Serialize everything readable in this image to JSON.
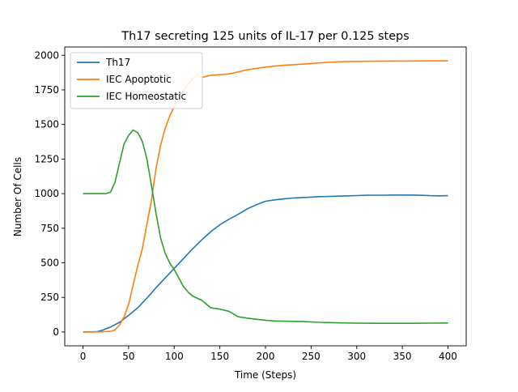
{
  "chart_data": {
    "type": "line",
    "title": "Th17 secreting 125 units of IL-17 per 0.125 steps",
    "xlabel": "Time (Steps)",
    "ylabel": "Number Of Cells",
    "xlim": [
      -20,
      420
    ],
    "ylim": [
      -100,
      2060
    ],
    "xticks": [
      0,
      50,
      100,
      150,
      200,
      250,
      300,
      350,
      400
    ],
    "yticks": [
      0,
      250,
      500,
      750,
      1000,
      1250,
      1500,
      1750,
      2000
    ],
    "grid": false,
    "legend_position": "top-left",
    "series": [
      {
        "name": "Th17",
        "color": "#1f77b4",
        "points": [
          [
            0,
            0
          ],
          [
            15,
            2
          ],
          [
            20,
            10
          ],
          [
            30,
            35
          ],
          [
            40,
            70
          ],
          [
            50,
            120
          ],
          [
            60,
            175
          ],
          [
            70,
            245
          ],
          [
            80,
            320
          ],
          [
            90,
            390
          ],
          [
            100,
            460
          ],
          [
            110,
            530
          ],
          [
            120,
            600
          ],
          [
            130,
            665
          ],
          [
            140,
            725
          ],
          [
            150,
            775
          ],
          [
            160,
            815
          ],
          [
            170,
            850
          ],
          [
            180,
            890
          ],
          [
            190,
            920
          ],
          [
            200,
            945
          ],
          [
            210,
            955
          ],
          [
            220,
            962
          ],
          [
            230,
            968
          ],
          [
            240,
            972
          ],
          [
            250,
            975
          ],
          [
            260,
            978
          ],
          [
            270,
            980
          ],
          [
            280,
            982
          ],
          [
            290,
            984
          ],
          [
            300,
            986
          ],
          [
            310,
            988
          ],
          [
            320,
            989
          ],
          [
            330,
            989
          ],
          [
            340,
            990
          ],
          [
            350,
            990
          ],
          [
            360,
            990
          ],
          [
            370,
            988
          ],
          [
            380,
            985
          ],
          [
            390,
            984
          ],
          [
            400,
            985
          ]
        ]
      },
      {
        "name": "IEC Apoptotic",
        "color": "#ff7f0e",
        "points": [
          [
            0,
            0
          ],
          [
            10,
            0
          ],
          [
            20,
            1
          ],
          [
            30,
            5
          ],
          [
            35,
            15
          ],
          [
            40,
            50
          ],
          [
            45,
            110
          ],
          [
            50,
            200
          ],
          [
            55,
            340
          ],
          [
            60,
            480
          ],
          [
            65,
            600
          ],
          [
            70,
            780
          ],
          [
            75,
            950
          ],
          [
            80,
            1180
          ],
          [
            85,
            1350
          ],
          [
            90,
            1470
          ],
          [
            95,
            1560
          ],
          [
            100,
            1630
          ],
          [
            105,
            1690
          ],
          [
            110,
            1740
          ],
          [
            115,
            1790
          ],
          [
            120,
            1830
          ],
          [
            125,
            1860
          ],
          [
            130,
            1840
          ],
          [
            140,
            1855
          ],
          [
            150,
            1860
          ],
          [
            160,
            1865
          ],
          [
            170,
            1880
          ],
          [
            180,
            1895
          ],
          [
            190,
            1905
          ],
          [
            200,
            1915
          ],
          [
            210,
            1922
          ],
          [
            220,
            1928
          ],
          [
            230,
            1932
          ],
          [
            240,
            1936
          ],
          [
            250,
            1940
          ],
          [
            260,
            1945
          ],
          [
            270,
            1950
          ],
          [
            280,
            1953
          ],
          [
            290,
            1955
          ],
          [
            300,
            1956
          ],
          [
            320,
            1957
          ],
          [
            340,
            1958
          ],
          [
            360,
            1959
          ],
          [
            380,
            1960
          ],
          [
            400,
            1960
          ]
        ]
      },
      {
        "name": "IEC Homeostatic",
        "color": "#2ca02c",
        "points": [
          [
            0,
            1000
          ],
          [
            25,
            1000
          ],
          [
            30,
            1010
          ],
          [
            35,
            1080
          ],
          [
            40,
            1220
          ],
          [
            45,
            1360
          ],
          [
            50,
            1420
          ],
          [
            55,
            1460
          ],
          [
            60,
            1440
          ],
          [
            65,
            1380
          ],
          [
            70,
            1250
          ],
          [
            75,
            1060
          ],
          [
            80,
            860
          ],
          [
            85,
            680
          ],
          [
            90,
            570
          ],
          [
            95,
            500
          ],
          [
            100,
            450
          ],
          [
            105,
            390
          ],
          [
            110,
            330
          ],
          [
            115,
            290
          ],
          [
            120,
            260
          ],
          [
            130,
            230
          ],
          [
            140,
            175
          ],
          [
            150,
            165
          ],
          [
            160,
            150
          ],
          [
            170,
            110
          ],
          [
            180,
            100
          ],
          [
            190,
            92
          ],
          [
            200,
            85
          ],
          [
            210,
            80
          ],
          [
            220,
            78
          ],
          [
            240,
            76
          ],
          [
            260,
            70
          ],
          [
            280,
            66
          ],
          [
            300,
            64
          ],
          [
            320,
            63
          ],
          [
            340,
            63
          ],
          [
            360,
            63
          ],
          [
            380,
            64
          ],
          [
            400,
            65
          ]
        ]
      }
    ]
  }
}
